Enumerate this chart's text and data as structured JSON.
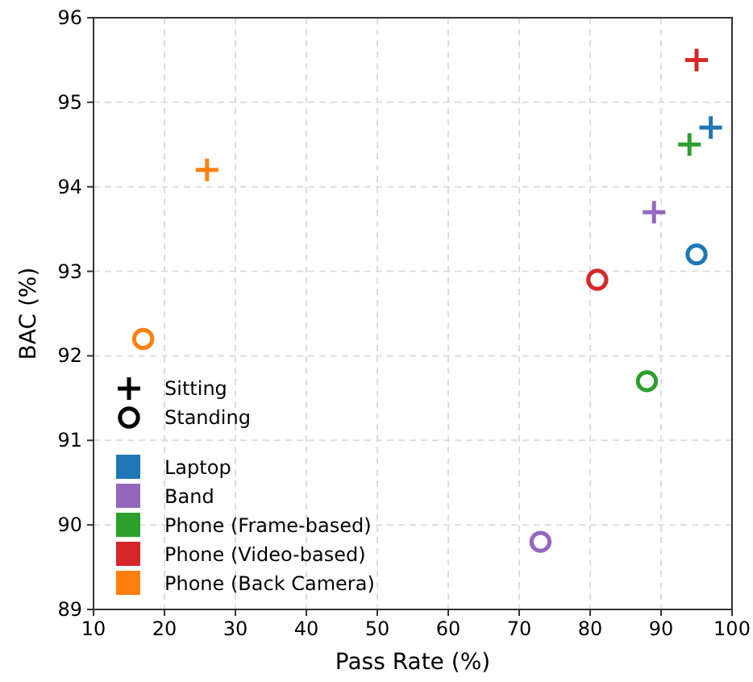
{
  "chart_data": {
    "type": "scatter",
    "xlabel": "Pass Rate (%)",
    "ylabel": "BAC (%)",
    "xlim": [
      10,
      100
    ],
    "xticks": [
      10,
      20,
      30,
      40,
      50,
      60,
      70,
      80,
      90,
      100
    ],
    "ylim": [
      89,
      96
    ],
    "yticks": [
      89,
      90,
      91,
      92,
      93,
      94,
      95,
      96
    ],
    "grid": true,
    "legend": "bottom left",
    "series": [
      {
        "name": "Sitting",
        "marker": "cross",
        "color": "#000000"
      },
      {
        "name": "Standing",
        "marker": "circle",
        "color": "#000000"
      },
      {
        "name": "Laptop",
        "marker": "cross",
        "color": "#1f77b4",
        "x": [
          97
        ],
        "values": [
          94.7
        ]
      },
      {
        "name": "Band",
        "marker": "cross",
        "color": "#9467bd",
        "x": [
          89
        ],
        "values": [
          93.7
        ]
      },
      {
        "name": "Phone (Frame-based)",
        "marker": "cross",
        "color": "#2ca02c",
        "x": [
          94
        ],
        "values": [
          94.5
        ]
      },
      {
        "name": "Phone (Video-based)",
        "marker": "cross",
        "color": "#d62728",
        "x": [
          95
        ],
        "values": [
          95.5
        ]
      },
      {
        "name": "Phone (Back Camera)",
        "marker": "cross",
        "color": "#ff7f0e",
        "x": [
          26
        ],
        "values": [
          94.2
        ]
      },
      {
        "marker": "circle",
        "color": "#1f77b4",
        "x": [
          95
        ],
        "values": [
          93.2
        ]
      },
      {
        "marker": "circle",
        "color": "#9467bd",
        "x": [
          73
        ],
        "values": [
          89.8
        ]
      },
      {
        "marker": "circle",
        "color": "#2ca02c",
        "x": [
          88
        ],
        "values": [
          91.7
        ]
      },
      {
        "marker": "circle",
        "color": "#d62728",
        "x": [
          81
        ],
        "values": [
          92.9
        ]
      },
      {
        "marker": "circle",
        "color": "#ff7f0e",
        "x": [
          17
        ],
        "values": [
          92.2
        ]
      }
    ]
  }
}
